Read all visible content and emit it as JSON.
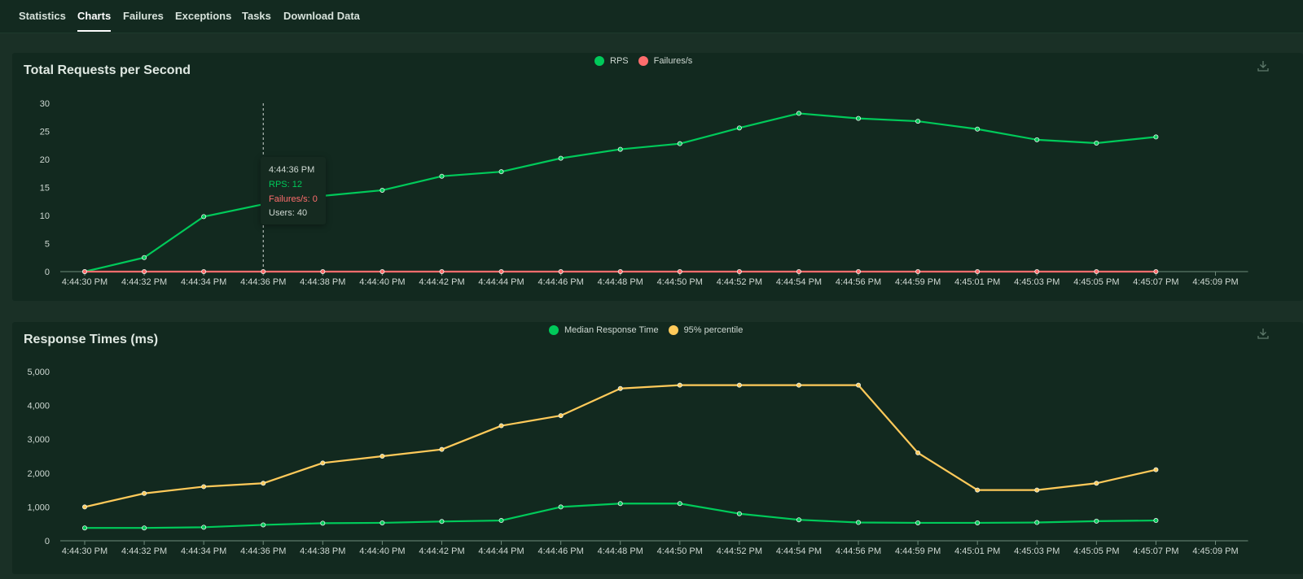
{
  "nav": {
    "tabs": [
      {
        "label": "Statistics"
      },
      {
        "label": "Charts"
      },
      {
        "label": "Failures"
      },
      {
        "label": "Exceptions"
      },
      {
        "label": "Tasks"
      },
      {
        "label": "Download Data"
      }
    ],
    "active_tab": "Charts"
  },
  "colors": {
    "green": "#00ca5a",
    "red": "#ff6d6d",
    "yellow": "#ffca5a",
    "axis_text": "#cfd9d3"
  },
  "icons": {
    "download": "download-icon"
  },
  "tooltip": {
    "time": "4:44:36 PM",
    "rps": "RPS: 12",
    "failures": "Failures/s: 0",
    "users": "Users: 40"
  },
  "chart_data": [
    {
      "type": "line",
      "title": "Total Requests per Second",
      "x": [
        "4:44:30 PM",
        "4:44:32 PM",
        "4:44:34 PM",
        "4:44:36 PM",
        "4:44:38 PM",
        "4:44:40 PM",
        "4:44:42 PM",
        "4:44:44 PM",
        "4:44:46 PM",
        "4:44:48 PM",
        "4:44:50 PM",
        "4:44:52 PM",
        "4:44:54 PM",
        "4:44:56 PM",
        "4:44:59 PM",
        "4:45:01 PM",
        "4:45:03 PM",
        "4:45:05 PM",
        "4:45:07 PM",
        "4:45:09 PM"
      ],
      "series": [
        {
          "name": "RPS",
          "color": "#00ca5a",
          "values": [
            0,
            2.5,
            9.8,
            12,
            13.5,
            14.5,
            17,
            17.8,
            20.2,
            21.8,
            22.8,
            25.6,
            28.2,
            27.3,
            26.8,
            25.4,
            23.5,
            22.9,
            24,
            null
          ]
        },
        {
          "name": "Failures/s",
          "color": "#ff6d6d",
          "values": [
            0,
            0,
            0,
            0,
            0,
            0,
            0,
            0,
            0,
            0,
            0,
            0,
            0,
            0,
            0,
            0,
            0,
            0,
            0,
            null
          ]
        }
      ],
      "yticks": [
        "0",
        "5",
        "10",
        "15",
        "20",
        "25",
        "30"
      ],
      "ylim": [
        0,
        30
      ],
      "legend": "top-center",
      "grid": false
    },
    {
      "type": "line",
      "title": "Response Times (ms)",
      "x": [
        "4:44:30 PM",
        "4:44:32 PM",
        "4:44:34 PM",
        "4:44:36 PM",
        "4:44:38 PM",
        "4:44:40 PM",
        "4:44:42 PM",
        "4:44:44 PM",
        "4:44:46 PM",
        "4:44:48 PM",
        "4:44:50 PM",
        "4:44:52 PM",
        "4:44:54 PM",
        "4:44:56 PM",
        "4:44:59 PM",
        "4:45:01 PM",
        "4:45:03 PM",
        "4:45:05 PM",
        "4:45:07 PM",
        "4:45:09 PM"
      ],
      "series": [
        {
          "name": "Median Response Time",
          "color": "#00ca5a",
          "values": [
            380,
            380,
            400,
            470,
            520,
            530,
            570,
            600,
            1000,
            1100,
            1100,
            800,
            620,
            540,
            530,
            530,
            540,
            580,
            600,
            null
          ]
        },
        {
          "name": "95% percentile",
          "color": "#ffca5a",
          "values": [
            1000,
            1400,
            1600,
            1700,
            2300,
            2500,
            2700,
            3400,
            3700,
            4500,
            4600,
            4600,
            4600,
            4600,
            2600,
            1500,
            1500,
            1700,
            2100,
            null
          ]
        }
      ],
      "yticks": [
        "0",
        "1,000",
        "2,000",
        "3,000",
        "4,000",
        "5,000"
      ],
      "ylim": [
        0,
        5000
      ],
      "legend": "top-center",
      "grid": false
    }
  ]
}
